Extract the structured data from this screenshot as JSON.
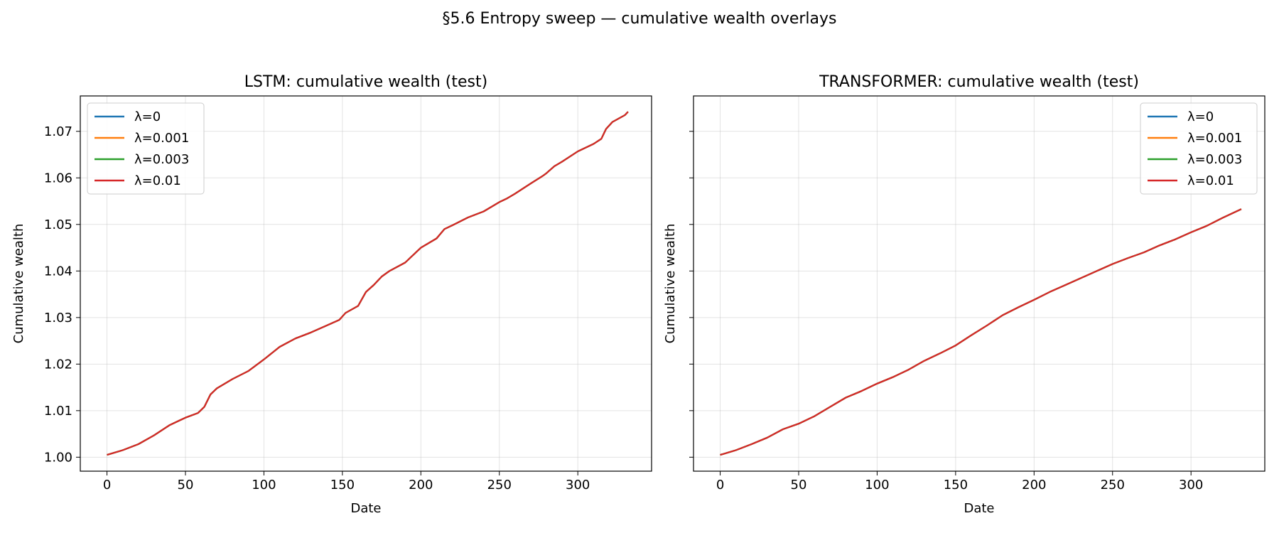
{
  "suptitle": "§5.6 Entropy sweep — cumulative wealth overlays",
  "chart_data": [
    {
      "type": "line",
      "title": "LSTM: cumulative wealth (test)",
      "xlabel": "Date",
      "ylabel": "Cumulative wealth",
      "xlim": [
        -17,
        347
      ],
      "ylim": [
        0.997,
        1.0776
      ],
      "xticks": [
        0,
        50,
        100,
        150,
        200,
        250,
        300
      ],
      "yticks": [
        1.0,
        1.01,
        1.02,
        1.03,
        1.04,
        1.05,
        1.06,
        1.07
      ],
      "ytick_labels": [
        "1.00",
        "1.01",
        "1.02",
        "1.03",
        "1.04",
        "1.05",
        "1.06",
        "1.07"
      ],
      "grid": true,
      "legend_position": "upper-left",
      "series": [
        {
          "name": "λ=0",
          "color": "#1f77b4"
        },
        {
          "name": "λ=0.001",
          "color": "#ff7f0e"
        },
        {
          "name": "λ=0.003",
          "color": "#2ca02c"
        },
        {
          "name": "λ=0.01",
          "color": "#d62728"
        }
      ],
      "curve": {
        "x": [
          0,
          10,
          20,
          30,
          40,
          50,
          58,
          62,
          66,
          70,
          80,
          90,
          100,
          110,
          120,
          130,
          140,
          148,
          152,
          160,
          165,
          170,
          175,
          180,
          190,
          200,
          210,
          215,
          220,
          230,
          240,
          250,
          255,
          260,
          270,
          278,
          280,
          285,
          290,
          300,
          310,
          315,
          318,
          322,
          330,
          332
        ],
        "y": [
          1.0005,
          1.0015,
          1.0028,
          1.0047,
          1.0069,
          1.0085,
          1.0095,
          1.0108,
          1.0135,
          1.0148,
          1.0168,
          1.0185,
          1.021,
          1.0237,
          1.0255,
          1.0268,
          1.0283,
          1.0295,
          1.031,
          1.0325,
          1.0355,
          1.037,
          1.0388,
          1.04,
          1.0418,
          1.045,
          1.047,
          1.049,
          1.0498,
          1.0515,
          1.0528,
          1.0548,
          1.0556,
          1.0566,
          1.0588,
          1.0605,
          1.061,
          1.0625,
          1.0635,
          1.0657,
          1.0673,
          1.0684,
          1.0705,
          1.072,
          1.0735,
          1.0742
        ]
      }
    },
    {
      "type": "line",
      "title": "TRANSFORMER: cumulative wealth (test)",
      "xlabel": "Date",
      "ylabel": "Cumulative wealth",
      "xlim": [
        -17,
        347
      ],
      "ylim": [
        0.997,
        1.0776
      ],
      "xticks": [
        0,
        50,
        100,
        150,
        200,
        250,
        300
      ],
      "yticks": [
        1.0,
        1.01,
        1.02,
        1.03,
        1.04,
        1.05,
        1.06,
        1.07
      ],
      "grid": true,
      "legend_position": "upper-right",
      "series": [
        {
          "name": "λ=0",
          "color": "#1f77b4"
        },
        {
          "name": "λ=0.001",
          "color": "#ff7f0e"
        },
        {
          "name": "λ=0.003",
          "color": "#2ca02c"
        },
        {
          "name": "λ=0.01",
          "color": "#d62728"
        }
      ],
      "curve": {
        "x": [
          0,
          10,
          20,
          30,
          40,
          50,
          60,
          70,
          80,
          90,
          100,
          110,
          120,
          130,
          140,
          150,
          160,
          170,
          180,
          190,
          200,
          210,
          220,
          230,
          240,
          250,
          260,
          270,
          280,
          290,
          300,
          310,
          320,
          332
        ],
        "y": [
          1.0005,
          1.0015,
          1.0028,
          1.0042,
          1.006,
          1.0072,
          1.0088,
          1.0108,
          1.0128,
          1.0142,
          1.0158,
          1.0172,
          1.0188,
          1.0207,
          1.0223,
          1.024,
          1.0262,
          1.0283,
          1.0305,
          1.0322,
          1.0338,
          1.0355,
          1.037,
          1.0385,
          1.04,
          1.0415,
          1.0428,
          1.044,
          1.0455,
          1.0468,
          1.0483,
          1.0497,
          1.0514,
          1.0533
        ]
      }
    }
  ]
}
